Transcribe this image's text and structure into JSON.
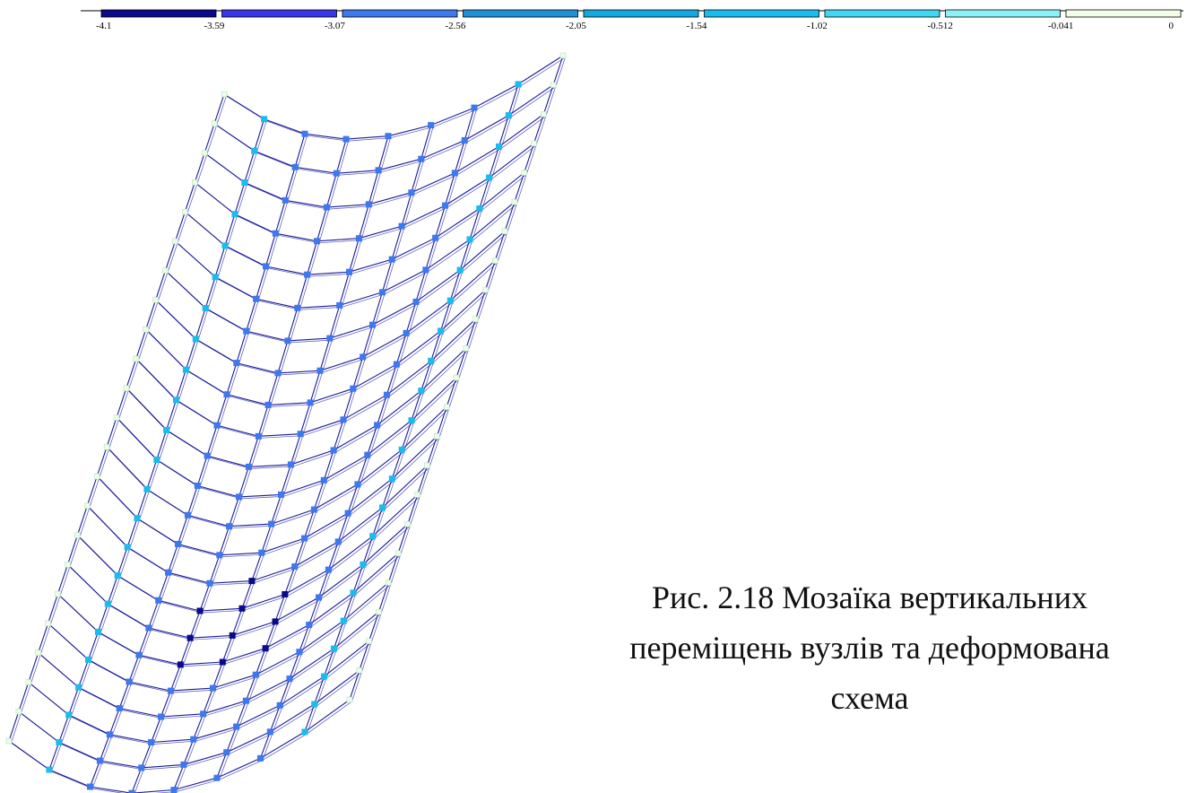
{
  "legend": {
    "ticks": [
      "-4.1",
      "-3.59",
      "-3.07",
      "-2.56",
      "-2.05",
      "-1.54",
      "-1.02",
      "-0.512",
      "-0.041",
      "0"
    ],
    "colors": [
      "#0a0a8c",
      "#3a35e6",
      "#3c78ee",
      "#1f8fd6",
      "#14a8e0",
      "#19bcec",
      "#40d6f4",
      "#8cf0f8",
      "#f2ffe6"
    ]
  },
  "mesh": {
    "node_colors": {
      "deep": "#0a0a8c",
      "mid": "#3c78ee",
      "light": "#19bcec",
      "pale": "#e6ffe6"
    },
    "line_color": "#1a1a9a"
  },
  "caption": {
    "line1": "Рис. 2.18 Мозаїка вертикальних",
    "line2": "переміщень вузлів та деформована",
    "line3": "схема"
  }
}
